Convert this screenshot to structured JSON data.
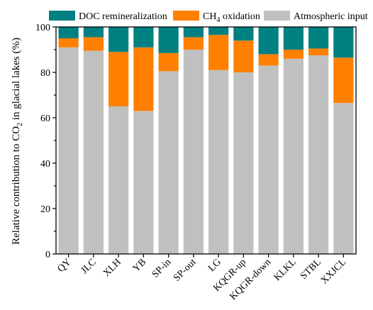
{
  "chart_data": {
    "type": "bar",
    "stacked": true,
    "categories": [
      "QY",
      "JLC",
      "XLH",
      "YB",
      "SP-in",
      "SP-out",
      "LG",
      "KQGR-up",
      "KQGR-down",
      "KLKL",
      "STBL",
      "XXJCL"
    ],
    "series": [
      {
        "name": "Atmospheric input",
        "color": "#c0c0c0",
        "values": [
          91,
          89.5,
          65,
          63,
          80.5,
          90,
          81,
          80,
          83,
          86,
          87.5,
          66.5
        ]
      },
      {
        "name": "CH4 oxidation",
        "name_main": "CH",
        "name_sub": "4",
        "name_rest": " oxidation",
        "color": "#ff8000",
        "values": [
          4,
          6,
          24,
          28,
          8,
          5.5,
          15.5,
          14,
          5,
          4,
          3,
          20
        ]
      },
      {
        "name": "DOC remineralization",
        "color": "#008080",
        "values": [
          5,
          4.5,
          11,
          9,
          11.5,
          4.5,
          3.5,
          6,
          12,
          10,
          9.5,
          13.5
        ]
      }
    ],
    "ylabel": "Relative contribution to CO2 in glacial lakes (%)",
    "ylabel_main": "Relative contribution to CO",
    "ylabel_sub": "2",
    "ylabel_rest": " in glacial lakes (%)",
    "xlabel": "",
    "ylim": [
      0,
      100
    ],
    "yticks": [
      0,
      20,
      40,
      60,
      80,
      100
    ],
    "legend_position": "top",
    "grid": false
  }
}
